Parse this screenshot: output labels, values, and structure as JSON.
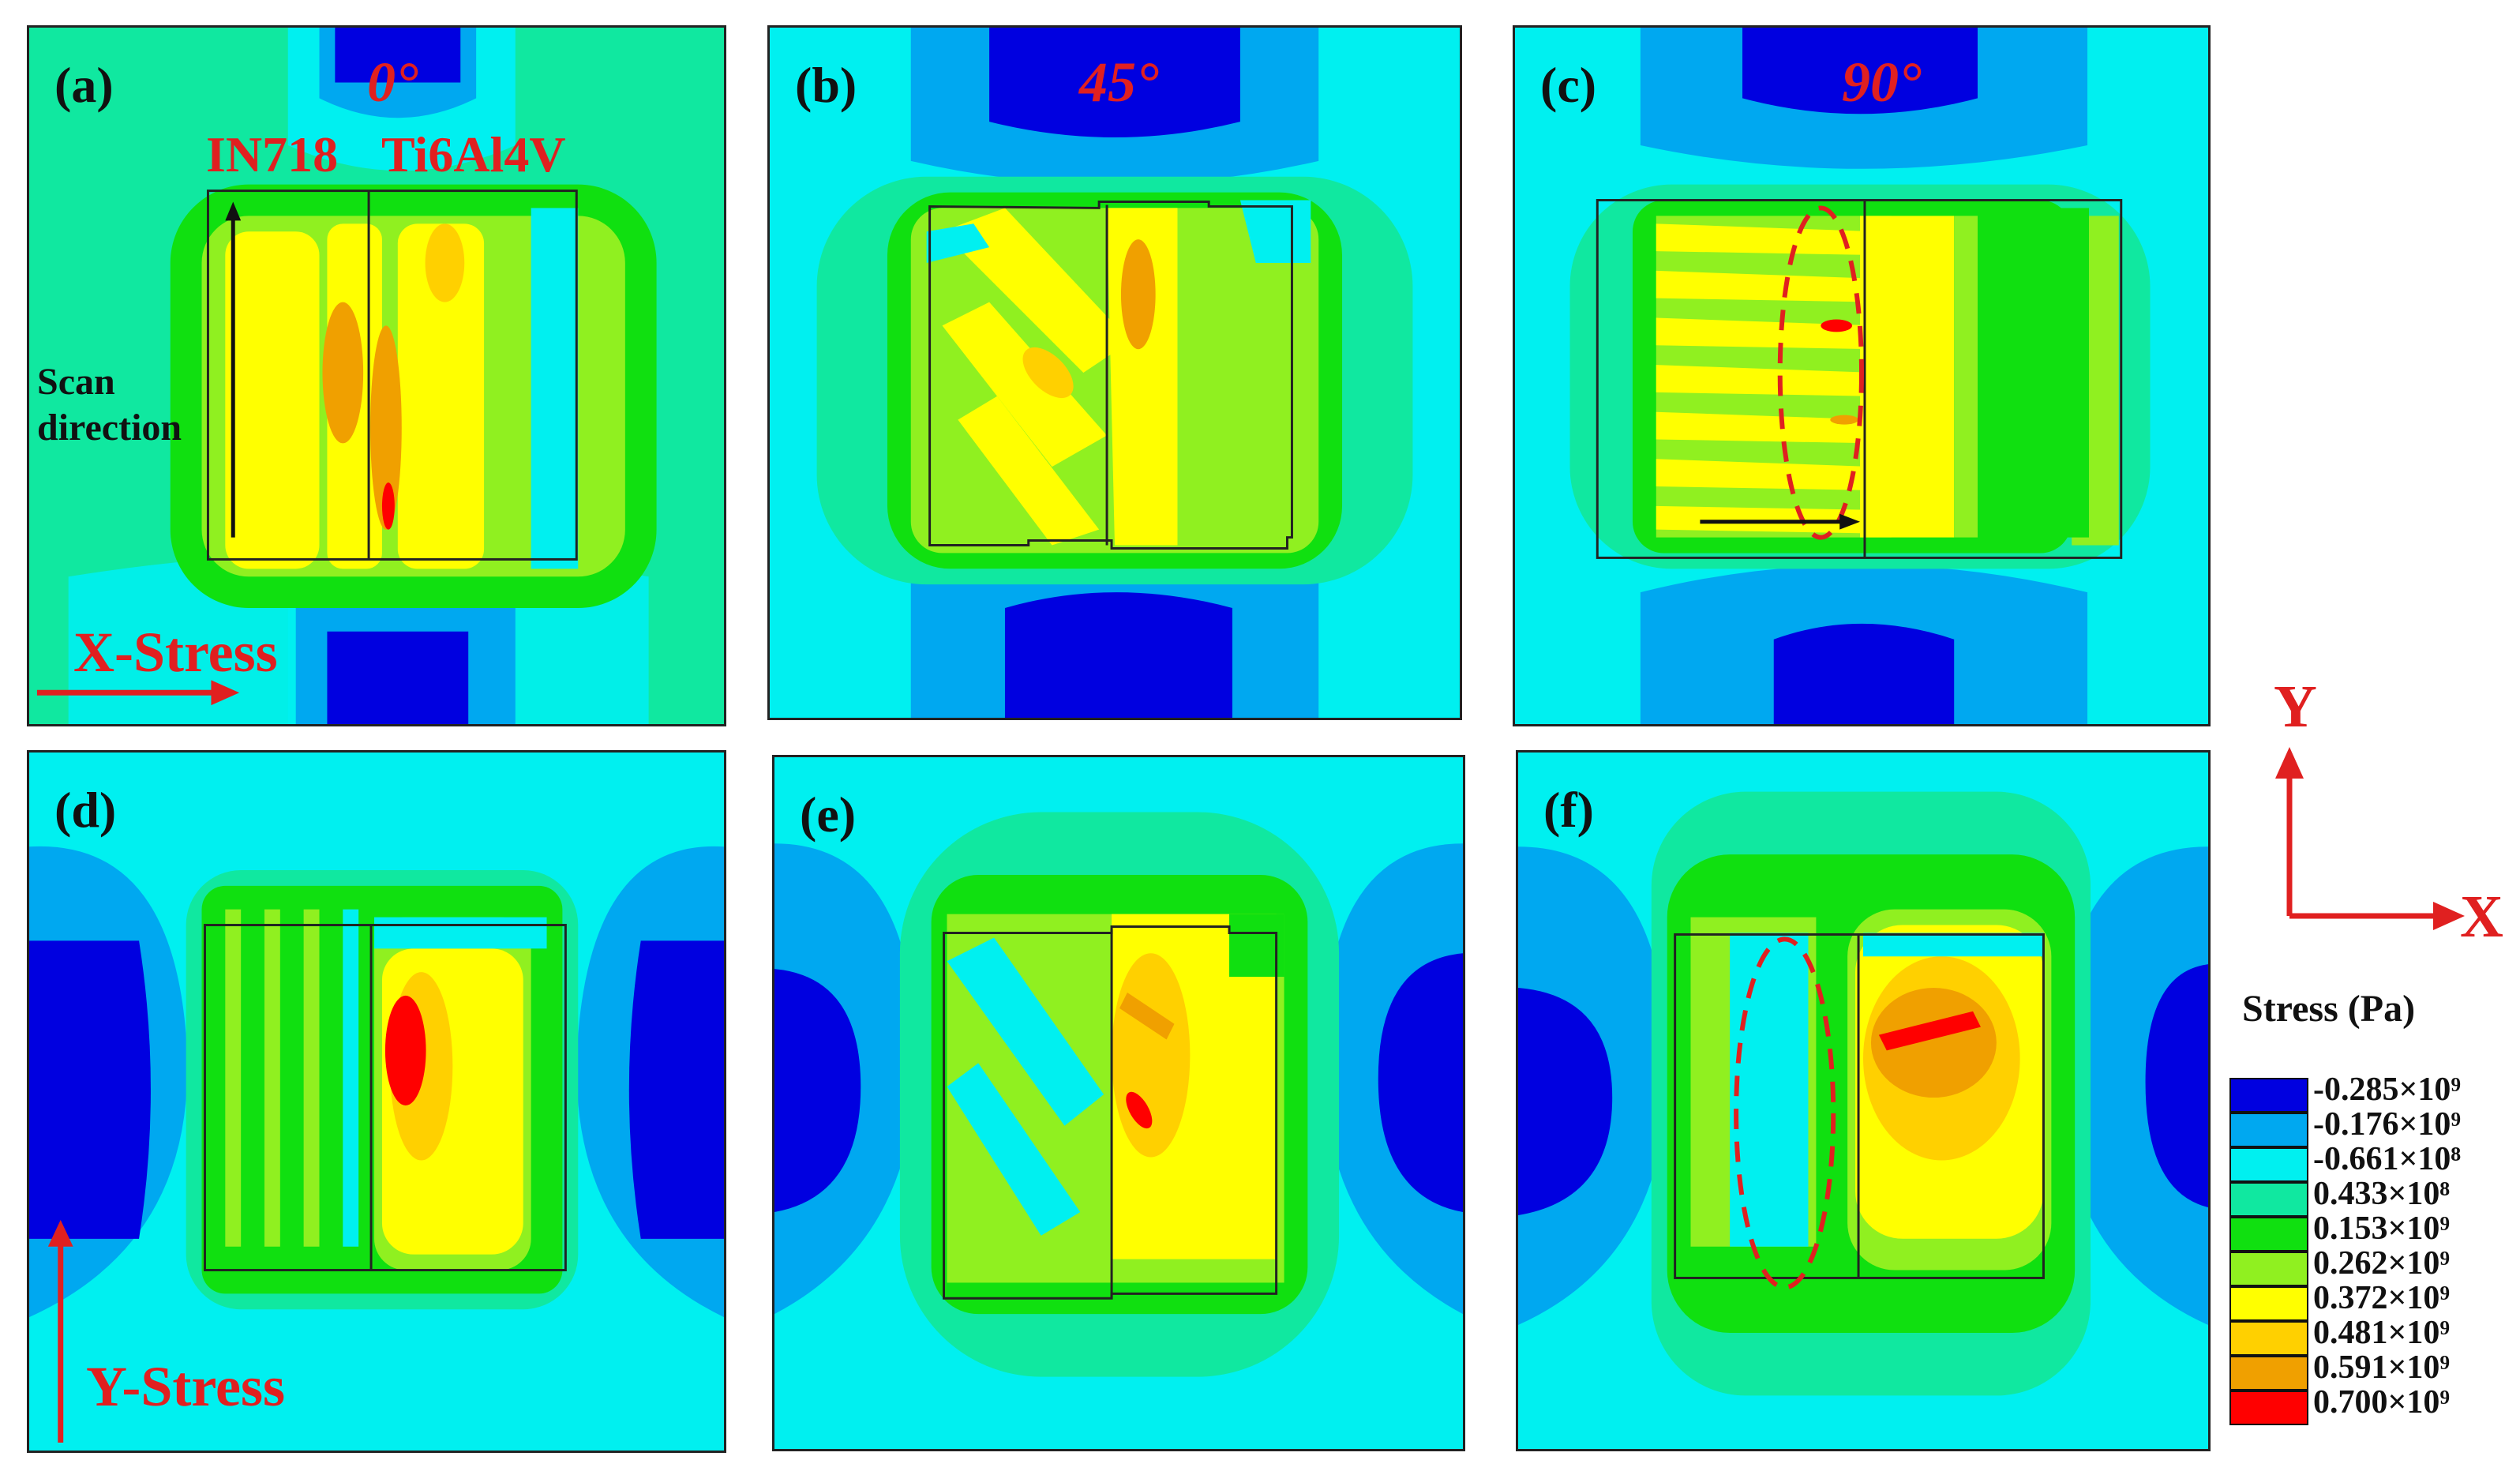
{
  "panels": [
    {
      "label": "(a)",
      "angle": "0°"
    },
    {
      "label": "(b)",
      "angle": "45°"
    },
    {
      "label": "(c)",
      "angle": "90°"
    },
    {
      "label": "(d)",
      "angle": ""
    },
    {
      "label": "(e)",
      "angle": ""
    },
    {
      "label": "(f)",
      "angle": ""
    }
  ],
  "annotations": {
    "material_left": "IN718",
    "material_right": "Ti6Al4V",
    "scan_direction_line1": "Scan",
    "scan_direction_line2": "direction",
    "x_stress": "X-Stress",
    "y_stress": "Y-Stress"
  },
  "axes": {
    "y": "Y",
    "x": "X"
  },
  "legend": {
    "title": "Stress (Pa)",
    "entries": [
      {
        "label": "-0.285×10⁹",
        "color": "#0000e0"
      },
      {
        "label": "-0.176×10⁹",
        "color": "#00a8f0"
      },
      {
        "label": "-0.661×10⁸",
        "color": "#00f0f0"
      },
      {
        "label": "0.433×10⁸",
        "color": "#10e8a0"
      },
      {
        "label": "0.153×10⁹",
        "color": "#10e010"
      },
      {
        "label": "0.262×10⁹",
        "color": "#90f020"
      },
      {
        "label": "0.372×10⁹",
        "color": "#ffff00"
      },
      {
        "label": "0.481×10⁹",
        "color": "#ffd000"
      },
      {
        "label": "0.591×10⁹",
        "color": "#f0a000"
      },
      {
        "label": "0.700×10⁹",
        "color": "#ff0000"
      }
    ]
  },
  "colors": {
    "background_field": "#00f0f0",
    "annotation_red": "#e02020"
  }
}
